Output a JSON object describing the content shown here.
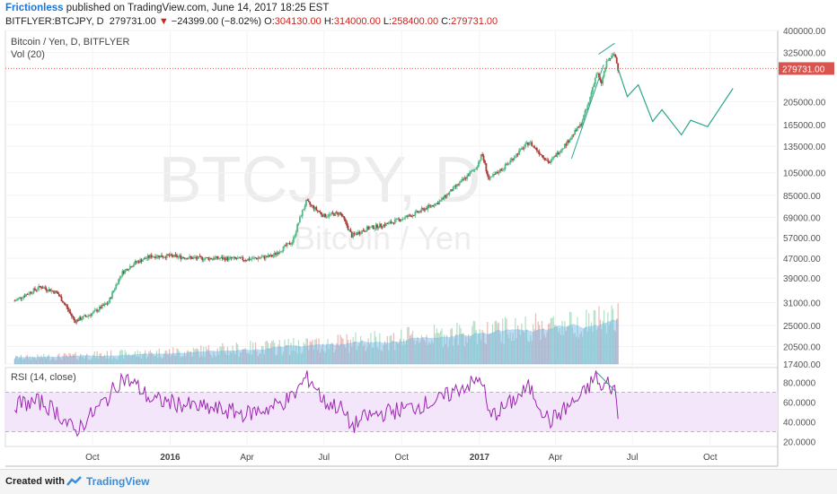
{
  "header": {
    "author": "Frictionless",
    "published_text": "published on TradingView.com, June 14, 2017 18:25 EST",
    "symbol": "BITFLYER:BTCJPY, D",
    "last": "279731.00",
    "change_arrow": "▼",
    "change": "−24399.00 (−8.02%)",
    "o_label": "O:",
    "o_value": "304130.00",
    "h_label": "H:",
    "h_value": "314000.00",
    "l_label": "L:",
    "l_value": "258400.00",
    "c_label": "C:",
    "c_value": "279731.00"
  },
  "footer": {
    "created_with": "Created with",
    "brand": "TradingView"
  },
  "chart_data": [
    {
      "type": "line",
      "pane": "price",
      "title": "Bitcoin / Yen, D, BITFLYER",
      "indicator": "Vol (20)",
      "watermark_symbol": "BTCJPY, D",
      "watermark_desc": "Bitcoin / Yen",
      "y_scale": "log",
      "ylim": [
        17400,
        400000
      ],
      "y_ticks": [
        "400000.00",
        "325000.00",
        "205000.00",
        "165000.00",
        "135000.00",
        "105000.00",
        "85000.00",
        "69000.00",
        "57000.00",
        "47000.00",
        "39000.00",
        "31000.00",
        "25000.00",
        "20500.00",
        "17400.00"
      ],
      "last_price_label": "279731.00",
      "last_price": 279731,
      "x_ticks": [
        "Oct",
        "2016",
        "Apr",
        "Jul",
        "Oct",
        "2017",
        "Apr",
        "Jul",
        "Oct"
      ],
      "series": [
        {
          "x": [
            "2015-07-01",
            "2015-08-01",
            "2015-08-20",
            "2015-09-10",
            "2015-10-01",
            "2015-10-20",
            "2015-11-05",
            "2015-11-20",
            "2015-12-10",
            "2016-01-01",
            "2016-02-01",
            "2016-03-01",
            "2016-04-01",
            "2016-05-01",
            "2016-05-25",
            "2016-06-10",
            "2016-06-18",
            "2016-07-01",
            "2016-07-20",
            "2016-08-03",
            "2016-08-20",
            "2016-09-15",
            "2016-10-15",
            "2016-11-15",
            "2016-12-10",
            "2016-12-28",
            "2017-01-04",
            "2017-01-12",
            "2017-02-01",
            "2017-03-01",
            "2017-03-10",
            "2017-03-25",
            "2017-04-15",
            "2017-05-01",
            "2017-05-10",
            "2017-05-20",
            "2017-05-25",
            "2017-06-01",
            "2017-06-10",
            "2017-06-14"
          ],
          "values": [
            31500,
            36000,
            34000,
            26000,
            28000,
            31000,
            41000,
            45000,
            48000,
            48000,
            47000,
            47000,
            46500,
            48000,
            55000,
            80000,
            76000,
            70000,
            72000,
            58000,
            62000,
            65000,
            71000,
            80000,
            96000,
            110000,
            125000,
            98000,
            112000,
            140000,
            130000,
            115000,
            140000,
            165000,
            200000,
            270000,
            240000,
            300000,
            320000,
            279731
          ]
        }
      ],
      "forecast": {
        "x": [
          "2017-06-14",
          "2017-06-25",
          "2017-07-08",
          "2017-07-25",
          "2017-08-05",
          "2017-08-28",
          "2017-09-08",
          "2017-09-28",
          "2017-10-28"
        ],
        "values": [
          279731,
          215000,
          240000,
          170000,
          190000,
          150000,
          172000,
          162000,
          232000
        ]
      },
      "volume_ma": "Vol (20)"
    },
    {
      "type": "line",
      "pane": "rsi",
      "title": "RSI (14, close)",
      "ylim": [
        15,
        95
      ],
      "y_ticks": [
        "80.0000",
        "60.0000",
        "40.0000",
        "20.0000"
      ],
      "band": [
        30,
        70
      ],
      "series": [
        {
          "x": [
            "2015-07-01",
            "2015-08-01",
            "2015-08-20",
            "2015-09-10",
            "2015-10-01",
            "2015-10-20",
            "2015-11-05",
            "2015-11-20",
            "2015-12-10",
            "2016-01-01",
            "2016-02-01",
            "2016-03-01",
            "2016-04-01",
            "2016-05-01",
            "2016-05-25",
            "2016-06-10",
            "2016-06-18",
            "2016-07-01",
            "2016-07-20",
            "2016-08-03",
            "2016-08-20",
            "2016-09-15",
            "2016-10-15",
            "2016-11-15",
            "2016-12-10",
            "2016-12-28",
            "2017-01-04",
            "2017-01-12",
            "2017-02-01",
            "2017-03-01",
            "2017-03-10",
            "2017-03-25",
            "2017-04-15",
            "2017-05-01",
            "2017-05-10",
            "2017-05-20",
            "2017-05-25",
            "2017-06-01",
            "2017-06-10",
            "2017-06-14"
          ],
          "values": [
            58,
            60,
            50,
            30,
            48,
            65,
            85,
            78,
            62,
            60,
            55,
            52,
            48,
            55,
            65,
            85,
            80,
            60,
            55,
            35,
            45,
            50,
            55,
            62,
            75,
            80,
            85,
            45,
            55,
            75,
            62,
            40,
            55,
            65,
            75,
            88,
            70,
            80,
            72,
            48
          ]
        }
      ]
    }
  ]
}
